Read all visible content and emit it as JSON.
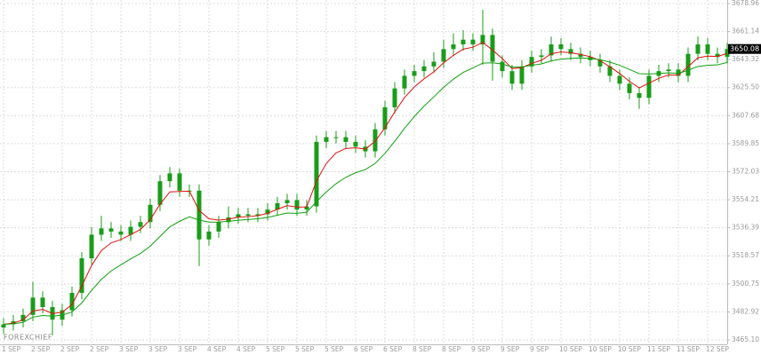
{
  "chart_data": {
    "type": "candlestick",
    "watermark": "FOREXCHIEF",
    "categories": [
      "1 SEP",
      null,
      null,
      "2 SEP",
      null,
      null,
      "2 SEP",
      null,
      null,
      "2 SEP",
      null,
      null,
      "3 SEP",
      null,
      null,
      "3 SEP",
      null,
      null,
      "3 SEP",
      null,
      null,
      "4 SEP",
      null,
      null,
      "4 SEP",
      null,
      null,
      "5 SEP",
      null,
      null,
      "5 SEP",
      null,
      null,
      "5 SEP",
      null,
      null,
      "6 SEP",
      null,
      null,
      "6 SEP",
      null,
      null,
      "8 SEP",
      null,
      null,
      "8 SEP",
      null,
      null,
      "9 SEP",
      null,
      null,
      "9 SEP",
      null,
      null,
      "9 SEP",
      null,
      null,
      "10 SEP",
      null,
      null,
      "10 SEP",
      null,
      null,
      "10 SEP",
      null,
      null,
      "11 SEP",
      null,
      null,
      "11 SEP",
      null,
      null,
      "12 SEP",
      null,
      null
    ],
    "open": [
      3473,
      3475,
      3477,
      3481,
      3492,
      3486,
      3478,
      3484,
      3495,
      3517,
      3532,
      3536,
      3534,
      3532,
      3537,
      3540,
      3551,
      3566,
      3571,
      3560,
      3560,
      3529,
      3534,
      3540,
      3543,
      3545,
      3544,
      3545,
      3548,
      3552,
      3554,
      3548,
      3550,
      3591,
      3594,
      3594,
      3591,
      3588,
      3585,
      3599,
      3613,
      3625,
      3633,
      3636,
      3639,
      3642,
      3650,
      3653,
      3656,
      3653,
      3659,
      3642,
      3636,
      3628,
      3639,
      3645,
      3646,
      3653,
      3650,
      3647,
      3645,
      3643,
      3639,
      3633,
      3628,
      3622,
      3619,
      3633,
      3636,
      3637,
      3633,
      3647,
      3653,
      3647,
      3645
    ],
    "high": [
      3479,
      3481,
      3485,
      3502,
      3496,
      3490,
      3488,
      3499,
      3521,
      3537,
      3544,
      3540,
      3538,
      3541,
      3544,
      3555,
      3570,
      3575,
      3574,
      3564,
      3564,
      3538,
      3544,
      3550,
      3549,
      3549,
      3549,
      3552,
      3556,
      3558,
      3558,
      3554,
      3595,
      3598,
      3598,
      3598,
      3595,
      3592,
      3603,
      3617,
      3629,
      3637,
      3640,
      3643,
      3648,
      3656,
      3660,
      3662,
      3660,
      3675,
      3663,
      3646,
      3640,
      3643,
      3649,
      3650,
      3658,
      3657,
      3654,
      3651,
      3649,
      3647,
      3643,
      3637,
      3632,
      3626,
      3637,
      3640,
      3641,
      3641,
      3651,
      3658,
      3657,
      3651,
      3654
    ],
    "low": [
      3469,
      3471,
      3473,
      3477,
      3482,
      3468,
      3474,
      3480,
      3491,
      3513,
      3528,
      3530,
      3528,
      3528,
      3533,
      3536,
      3547,
      3562,
      3556,
      3556,
      3512,
      3525,
      3530,
      3536,
      3539,
      3540,
      3540,
      3541,
      3544,
      3548,
      3544,
      3544,
      3546,
      3587,
      3590,
      3587,
      3584,
      3581,
      3581,
      3595,
      3609,
      3621,
      3629,
      3632,
      3635,
      3638,
      3646,
      3649,
      3649,
      3640,
      3630,
      3632,
      3624,
      3624,
      3635,
      3641,
      3642,
      3646,
      3643,
      3641,
      3639,
      3635,
      3629,
      3624,
      3618,
      3612,
      3615,
      3629,
      3632,
      3629,
      3629,
      3643,
      3643,
      3641,
      3641
    ],
    "close": [
      3475,
      3477,
      3481,
      3492,
      3486,
      3478,
      3484,
      3495,
      3517,
      3532,
      3536,
      3534,
      3532,
      3537,
      3540,
      3551,
      3566,
      3571,
      3560,
      3560,
      3529,
      3534,
      3540,
      3543,
      3545,
      3544,
      3545,
      3548,
      3552,
      3554,
      3548,
      3550,
      3591,
      3594,
      3594,
      3591,
      3588,
      3585,
      3599,
      3613,
      3625,
      3633,
      3636,
      3639,
      3642,
      3650,
      3653,
      3656,
      3653,
      3659,
      3642,
      3636,
      3628,
      3639,
      3645,
      3646,
      3653,
      3650,
      3647,
      3645,
      3643,
      3639,
      3633,
      3628,
      3622,
      3619,
      3633,
      3636,
      3637,
      3633,
      3647,
      3653,
      3647,
      3645,
      3650.08
    ],
    "color": "#1a9c1a",
    "lines": [
      {
        "color": "#e01010",
        "values": [
          3475,
          3475.8,
          3477.9,
          3483.5,
          3484.5,
          3481.9,
          3482.7,
          3487.6,
          3499.4,
          3512.4,
          3521.9,
          3526.8,
          3528.9,
          3532.1,
          3535.3,
          3541.6,
          3551.4,
          3559.2,
          3559.5,
          3559.7,
          3547.4,
          3542.1,
          3541.3,
          3541.9,
          3543.1,
          3543.5,
          3544.1,
          3545.6,
          3548.2,
          3550.5,
          3549.5,
          3549.7,
          3566.2,
          3577.3,
          3584,
          3586.8,
          3587.3,
          3586.4,
          3591.4,
          3600,
          3610,
          3619.2,
          3625.9,
          3631.1,
          3635.5,
          3641.3,
          3646,
          3650,
          3651.2,
          3654.3,
          3649.4,
          3644,
          3637.6,
          3638.2,
          3640.9,
          3642.9,
          3647,
          3648.2,
          3647.7,
          3646.6,
          3645.2,
          3642.7,
          3638.8,
          3634.5,
          3629.5,
          3625.3,
          3628.4,
          3631.4,
          3633.6,
          3633.4,
          3638.8,
          3644.5,
          3645.5,
          3645.3,
          3647.2
        ]
      },
      {
        "color": "#10a010",
        "values": [
          3475,
          3475.3,
          3476.3,
          3479.6,
          3480.6,
          3480.2,
          3480.8,
          3482.9,
          3488.6,
          3496.6,
          3503.6,
          3508.9,
          3512.9,
          3516.6,
          3520.1,
          3524.7,
          3530.9,
          3537,
          3540.5,
          3543.4,
          3541.3,
          3540,
          3540,
          3540.5,
          3541.2,
          3541.6,
          3542.1,
          3543,
          3544.4,
          3545.8,
          3545.6,
          3546.3,
          3553,
          3559.2,
          3564.4,
          3568.5,
          3571.4,
          3573.4,
          3577.3,
          3583.7,
          3591.4,
          3599.6,
          3607.1,
          3613.8,
          3619.6,
          3625.7,
          3630.9,
          3635.2,
          3638,
          3641.1,
          3641.3,
          3640.5,
          3638.6,
          3638.7,
          3639.7,
          3640.6,
          3642.5,
          3643.6,
          3644.1,
          3644.3,
          3644.1,
          3643.3,
          3641.7,
          3639.7,
          3637.1,
          3634.4,
          3634.2,
          3634.5,
          3634.9,
          3634.6,
          3636.5,
          3639,
          3639.7,
          3640,
          3641.5
        ]
      }
    ],
    "ylim": [
      3462.28,
      3681.22
    ],
    "yticks": [
      3678.96,
      3661.14,
      3643.32,
      {
        "value": 3625.5,
        "label": "3625.50"
      },
      3607.68,
      3589.85,
      3572.03,
      3554.21,
      3536.39,
      3518.57,
      3500.75,
      3482.92,
      {
        "value": 3465.1,
        "label": "3465.10"
      }
    ],
    "grid": true
  }
}
